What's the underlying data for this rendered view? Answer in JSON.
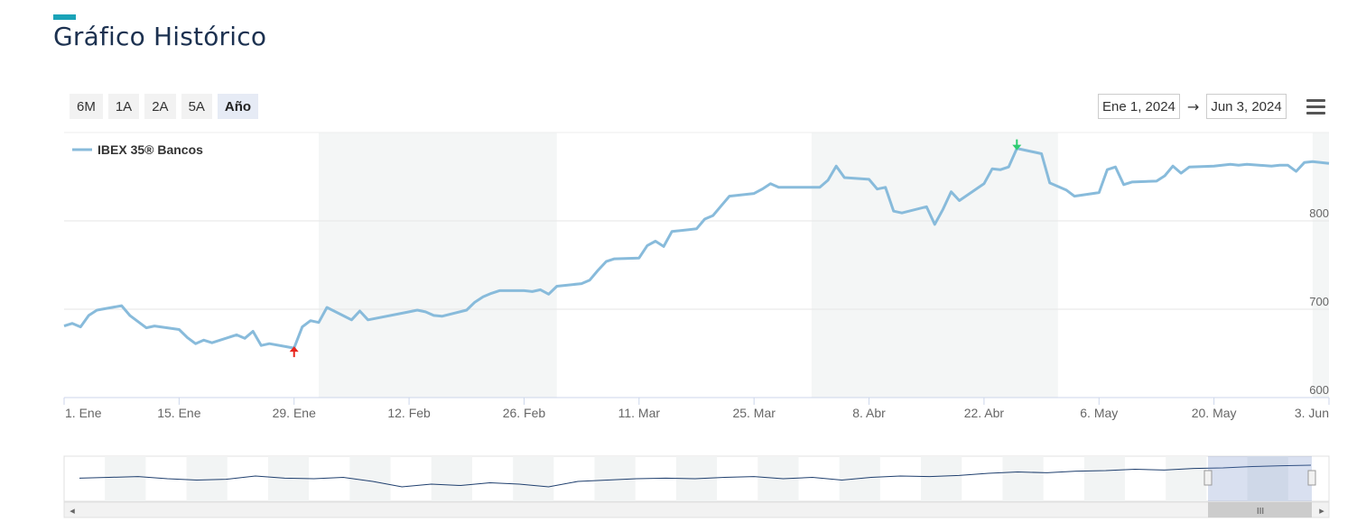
{
  "page": {
    "title": "Gráfico Histórico"
  },
  "range_buttons": [
    {
      "label": "6M",
      "active": false
    },
    {
      "label": "1A",
      "active": false
    },
    {
      "label": "2A",
      "active": false
    },
    {
      "label": "5A",
      "active": false
    },
    {
      "label": "Año",
      "active": true
    }
  ],
  "date_range": {
    "from": "Ene 1, 2024",
    "arrow": "→",
    "to": "Jun 3, 2024"
  },
  "icons": {
    "menu": "hamburger-menu-icon",
    "max_marker": "arrow-down-icon",
    "min_marker": "arrow-up-icon"
  },
  "navigator": {
    "scroll_handle": "III",
    "scroll_left": "◂",
    "scroll_right": "▸"
  },
  "colors": {
    "accent": "#1aa3b8",
    "title": "#1c3150",
    "series": "#88bbdb",
    "navigator_line": "#1f3f6e",
    "min_marker": "#e8261e",
    "max_marker": "#2ecc71",
    "band": "#f4f6f6"
  },
  "chart_data": {
    "type": "line",
    "legend": {
      "label": "IBEX 35® Bancos",
      "position": "top-left"
    },
    "x_ticks": [
      "1. Ene",
      "15. Ene",
      "29. Ene",
      "12. Feb",
      "26. Feb",
      "11. Mar",
      "25. Mar",
      "8. Abr",
      "22. Abr",
      "6. May",
      "20. May",
      "3. Jun"
    ],
    "y_ticks": [
      600,
      700,
      800
    ],
    "ylim": [
      600,
      900
    ],
    "xlim": [
      "2024-01-01",
      "2024-06-03"
    ],
    "grid": true,
    "series": [
      {
        "name": "IBEX 35® Bancos",
        "points": [
          [
            "2024-01-01",
            681
          ],
          [
            "2024-01-02",
            684
          ],
          [
            "2024-01-03",
            680
          ],
          [
            "2024-01-04",
            693
          ],
          [
            "2024-01-05",
            699
          ],
          [
            "2024-01-08",
            704
          ],
          [
            "2024-01-09",
            693
          ],
          [
            "2024-01-11",
            679
          ],
          [
            "2024-01-12",
            681
          ],
          [
            "2024-01-15",
            677
          ],
          [
            "2024-01-16",
            668
          ],
          [
            "2024-01-17",
            661
          ],
          [
            "2024-01-18",
            665
          ],
          [
            "2024-01-19",
            662
          ],
          [
            "2024-01-22",
            671
          ],
          [
            "2024-01-23",
            667
          ],
          [
            "2024-01-24",
            675
          ],
          [
            "2024-01-25",
            659
          ],
          [
            "2024-01-26",
            661
          ],
          [
            "2024-01-29",
            656
          ],
          [
            "2024-01-30",
            680
          ],
          [
            "2024-01-31",
            687
          ],
          [
            "2024-02-01",
            685
          ],
          [
            "2024-02-02",
            702
          ],
          [
            "2024-02-05",
            688
          ],
          [
            "2024-02-06",
            698
          ],
          [
            "2024-02-07",
            688
          ],
          [
            "2024-02-12",
            697
          ],
          [
            "2024-02-13",
            699
          ],
          [
            "2024-02-14",
            697
          ],
          [
            "2024-02-15",
            693
          ],
          [
            "2024-02-16",
            692
          ],
          [
            "2024-02-19",
            699
          ],
          [
            "2024-02-20",
            708
          ],
          [
            "2024-02-21",
            714
          ],
          [
            "2024-02-22",
            718
          ],
          [
            "2024-02-23",
            721
          ],
          [
            "2024-02-26",
            721
          ],
          [
            "2024-02-27",
            720
          ],
          [
            "2024-02-28",
            722
          ],
          [
            "2024-02-29",
            717
          ],
          [
            "2024-03-01",
            726
          ],
          [
            "2024-03-04",
            729
          ],
          [
            "2024-03-05",
            733
          ],
          [
            "2024-03-06",
            744
          ],
          [
            "2024-03-07",
            754
          ],
          [
            "2024-03-08",
            757
          ],
          [
            "2024-03-11",
            758
          ],
          [
            "2024-03-12",
            772
          ],
          [
            "2024-03-13",
            777
          ],
          [
            "2024-03-14",
            771
          ],
          [
            "2024-03-15",
            788
          ],
          [
            "2024-03-18",
            791
          ],
          [
            "2024-03-19",
            802
          ],
          [
            "2024-03-20",
            806
          ],
          [
            "2024-03-21",
            817
          ],
          [
            "2024-03-22",
            828
          ],
          [
            "2024-03-25",
            831
          ],
          [
            "2024-03-26",
            836
          ],
          [
            "2024-03-27",
            842
          ],
          [
            "2024-03-28",
            838
          ],
          [
            "2024-04-02",
            838
          ],
          [
            "2024-04-03",
            846
          ],
          [
            "2024-04-04",
            862
          ],
          [
            "2024-04-05",
            849
          ],
          [
            "2024-04-08",
            847
          ],
          [
            "2024-04-09",
            836
          ],
          [
            "2024-04-10",
            838
          ],
          [
            "2024-04-11",
            811
          ],
          [
            "2024-04-12",
            809
          ],
          [
            "2024-04-15",
            816
          ],
          [
            "2024-04-16",
            796
          ],
          [
            "2024-04-17",
            813
          ],
          [
            "2024-04-18",
            833
          ],
          [
            "2024-04-19",
            823
          ],
          [
            "2024-04-22",
            842
          ],
          [
            "2024-04-23",
            859
          ],
          [
            "2024-04-24",
            858
          ],
          [
            "2024-04-25",
            861
          ],
          [
            "2024-04-26",
            882
          ],
          [
            "2024-04-29",
            876
          ],
          [
            "2024-04-30",
            843
          ],
          [
            "2024-05-02",
            835
          ],
          [
            "2024-05-03",
            828
          ],
          [
            "2024-05-06",
            832
          ],
          [
            "2024-05-07",
            858
          ],
          [
            "2024-05-08",
            861
          ],
          [
            "2024-05-09",
            841
          ],
          [
            "2024-05-10",
            844
          ],
          [
            "2024-05-13",
            845
          ],
          [
            "2024-05-14",
            851
          ],
          [
            "2024-05-15",
            862
          ],
          [
            "2024-05-16",
            854
          ],
          [
            "2024-05-17",
            861
          ],
          [
            "2024-05-20",
            862
          ],
          [
            "2024-05-21",
            863
          ],
          [
            "2024-05-22",
            864
          ],
          [
            "2024-05-23",
            863
          ],
          [
            "2024-05-24",
            864
          ],
          [
            "2024-05-27",
            862
          ],
          [
            "2024-05-28",
            863
          ],
          [
            "2024-05-29",
            863
          ],
          [
            "2024-05-30",
            856
          ],
          [
            "2024-05-31",
            866
          ],
          [
            "2024-06-01",
            867
          ],
          [
            "2024-06-03",
            865
          ]
        ]
      }
    ],
    "markers": [
      {
        "type": "min",
        "x": "2024-01-29",
        "y": 656
      },
      {
        "type": "max",
        "x": "2024-04-26",
        "y": 882
      }
    ]
  }
}
